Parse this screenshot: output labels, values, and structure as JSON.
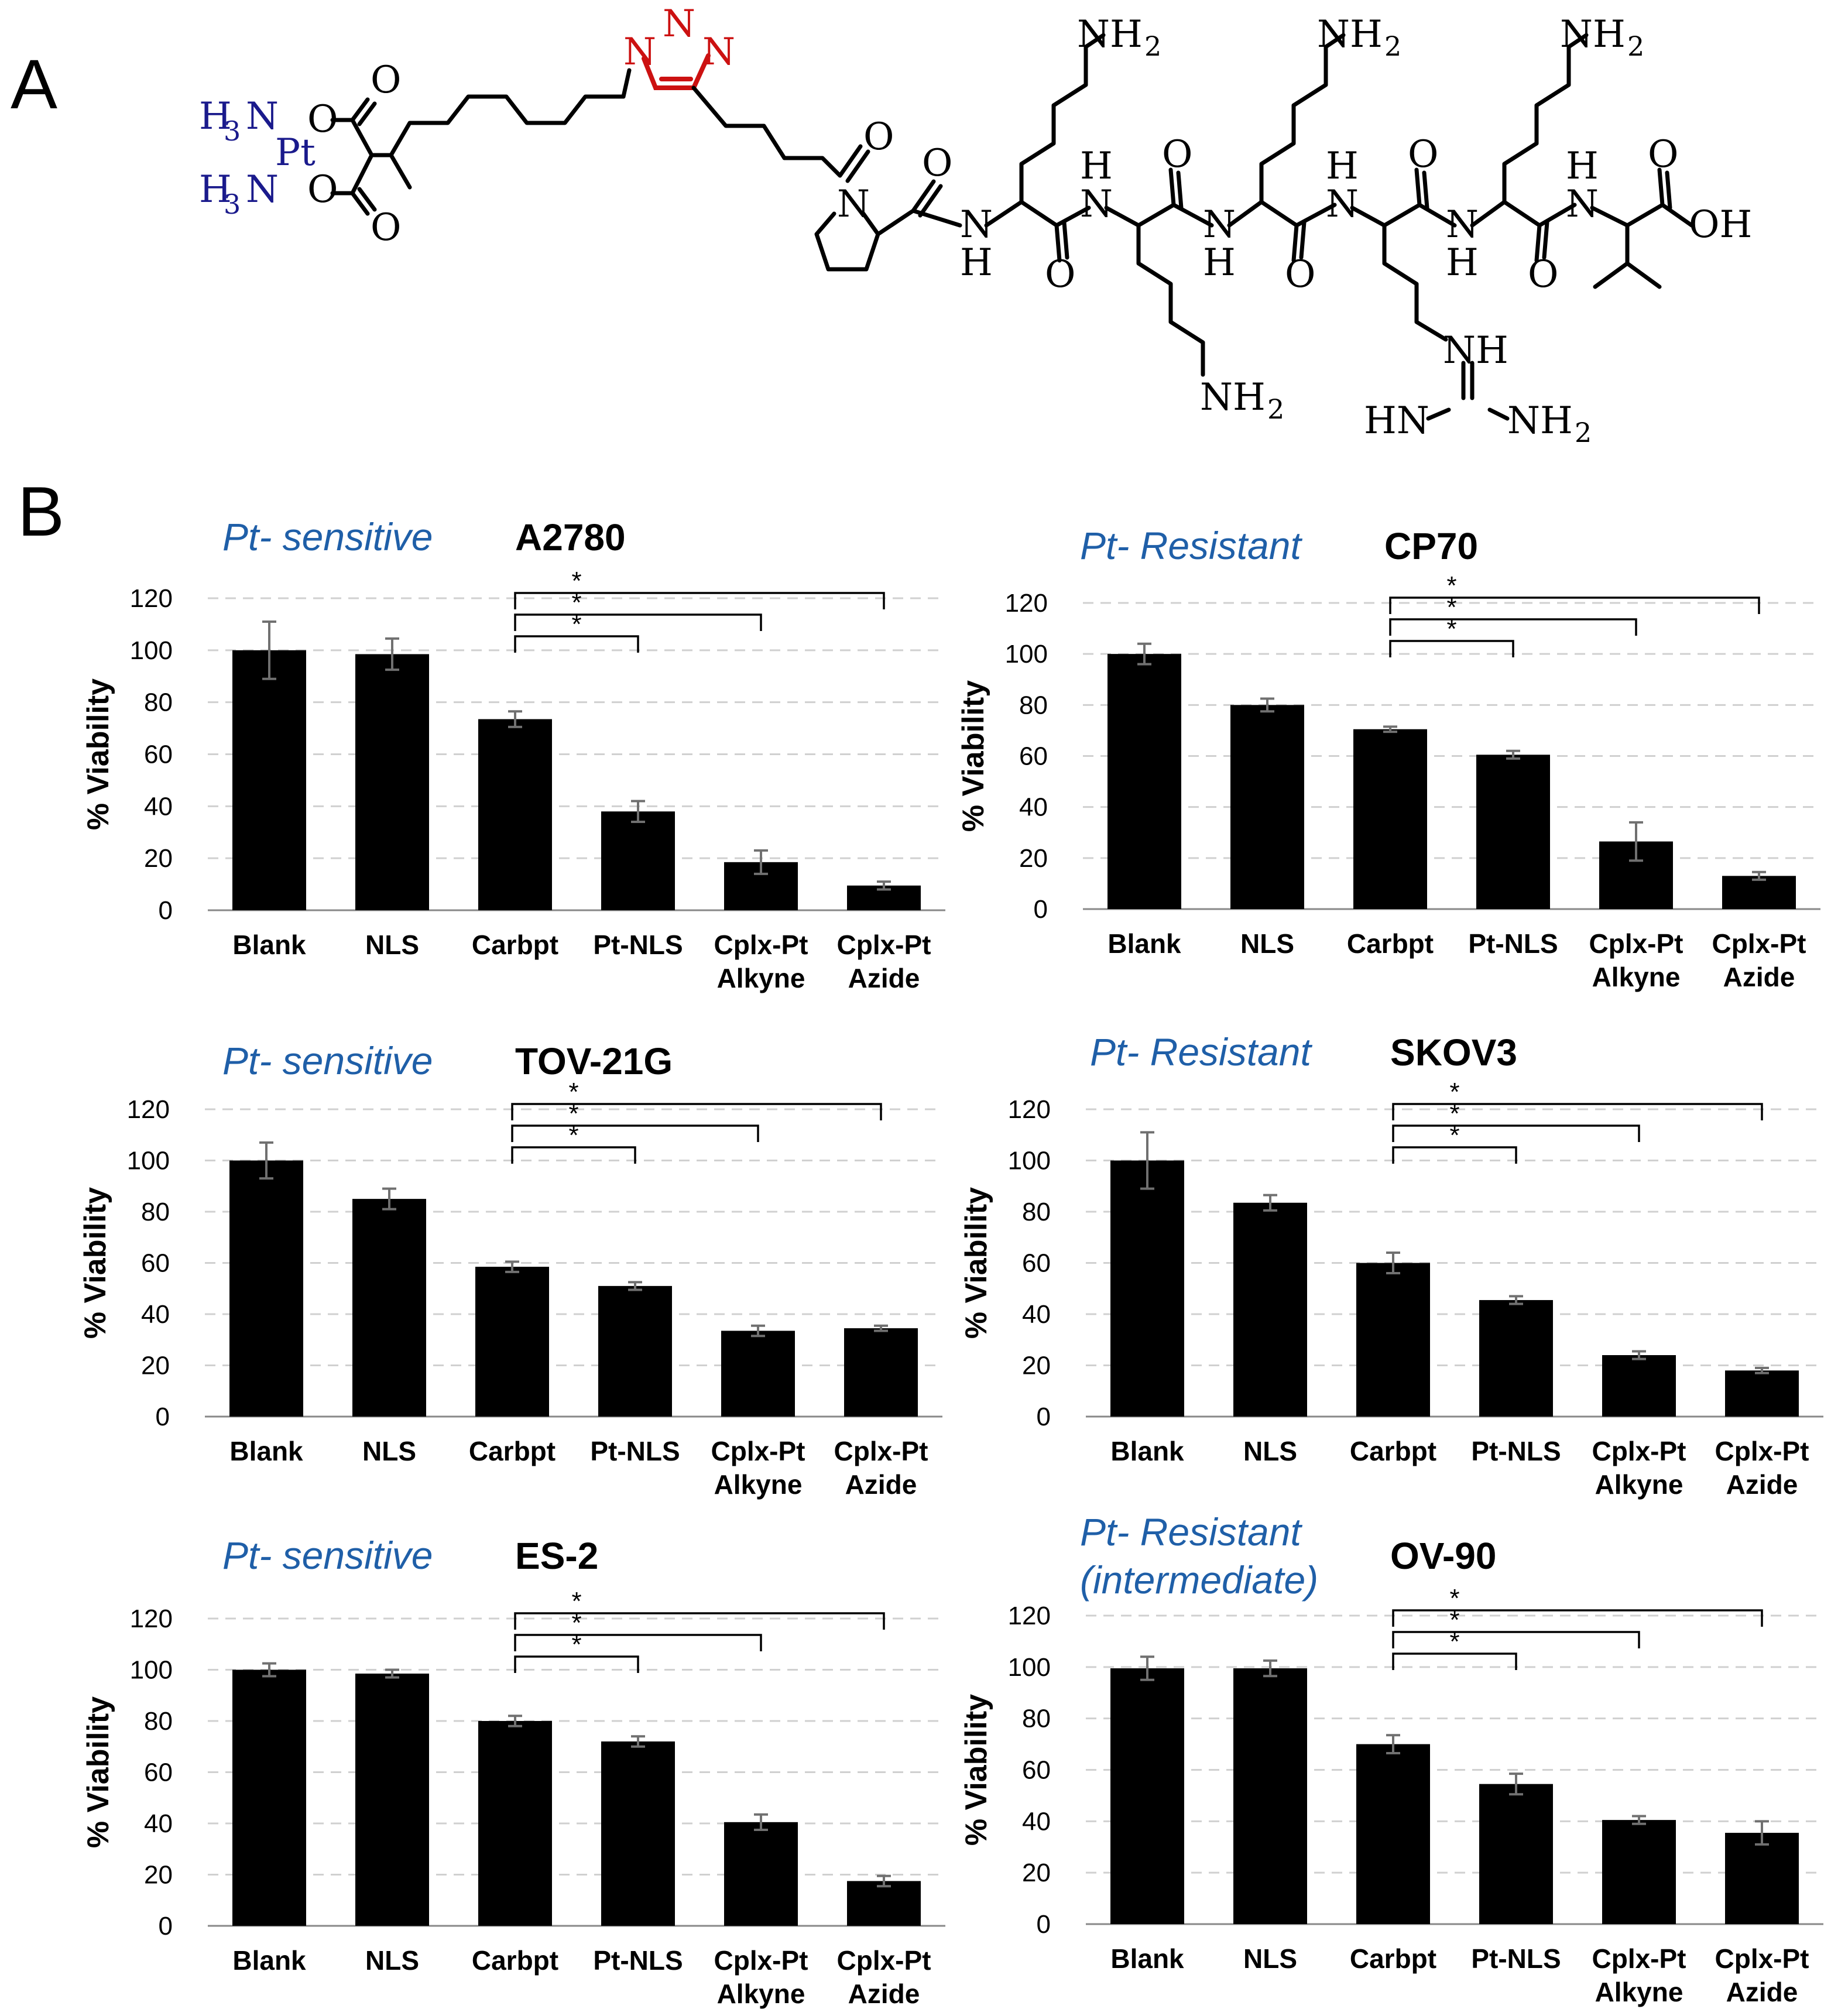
{
  "panel_labels": {
    "a": "A",
    "b": "B"
  },
  "structure": {
    "pt_atoms": {
      "h3n_top_H": "H",
      "h3n_top_3": "3",
      "h3n_top_N": "N",
      "h3n_bot_H": "H",
      "h3n_bot_3": "3",
      "h3n_bot_N": "N",
      "pt": "Pt"
    },
    "carboxylate_O": "O",
    "triazole_N": "N",
    "amide_N": "N",
    "amide_H": "H",
    "proline_N": "N",
    "amine_NH": "NH",
    "amine_sub": "2",
    "guan_NH": "NH",
    "guan_HN": "HN",
    "guan_NH2": "NH",
    "acid_OH": "OH",
    "colors": {
      "pt_ligand": "#1a1a8c",
      "triazole": "#cc1111"
    }
  },
  "chart_data": [
    {
      "type": "bar",
      "sensitivity": "Pt- sensitive",
      "title": "A2780",
      "ylabel": "% Viability",
      "ylim": [
        0,
        120
      ],
      "yticks": [
        0,
        20,
        40,
        60,
        80,
        100,
        120
      ],
      "categories": [
        [
          "Blank"
        ],
        [
          "NLS"
        ],
        [
          "Carbpt"
        ],
        [
          "Pt-NLS"
        ],
        [
          "Cplx-Pt",
          "Alkyne"
        ],
        [
          "Cplx-Pt",
          "Azide"
        ]
      ],
      "values": [
        100,
        98.5,
        73.5,
        38,
        18.5,
        9.5
      ],
      "errors": [
        11,
        6,
        3,
        4,
        4.5,
        1.5
      ],
      "significance": [
        {
          "from": 2,
          "to": 3,
          "label": "*"
        },
        {
          "from": 2,
          "to": 4,
          "label": "*"
        },
        {
          "from": 2,
          "to": 5,
          "label": "*"
        }
      ]
    },
    {
      "type": "bar",
      "sensitivity": "Pt- Resistant",
      "title": "CP70",
      "ylabel": "% Viability",
      "ylim": [
        0,
        120
      ],
      "yticks": [
        0,
        20,
        40,
        60,
        80,
        100,
        120
      ],
      "categories": [
        [
          "Blank"
        ],
        [
          "NLS"
        ],
        [
          "Carbpt"
        ],
        [
          "Pt-NLS"
        ],
        [
          "Cplx-Pt",
          "Alkyne"
        ],
        [
          "Cplx-Pt",
          "Azide"
        ]
      ],
      "values": [
        100,
        80,
        70.5,
        60.5,
        26.5,
        13
      ],
      "errors": [
        4,
        2.5,
        1,
        1.5,
        7.5,
        1.5
      ],
      "significance": [
        {
          "from": 2,
          "to": 3,
          "label": "*"
        },
        {
          "from": 2,
          "to": 4,
          "label": "*"
        },
        {
          "from": 2,
          "to": 5,
          "label": "*"
        }
      ]
    },
    {
      "type": "bar",
      "sensitivity": "Pt- sensitive",
      "title": "TOV-21G",
      "ylabel": "% Viability",
      "ylim": [
        0,
        120
      ],
      "yticks": [
        0,
        20,
        40,
        60,
        80,
        100,
        120
      ],
      "categories": [
        [
          "Blank"
        ],
        [
          "NLS"
        ],
        [
          "Carbpt"
        ],
        [
          "Pt-NLS"
        ],
        [
          "Cplx-Pt",
          "Alkyne"
        ],
        [
          "Cplx-Pt",
          "Azide"
        ]
      ],
      "values": [
        100,
        85,
        58.5,
        51,
        33.5,
        34.5
      ],
      "errors": [
        7,
        4,
        2,
        1.5,
        2,
        1
      ],
      "significance": [
        {
          "from": 2,
          "to": 3,
          "label": "*"
        },
        {
          "from": 2,
          "to": 4,
          "label": "*"
        },
        {
          "from": 2,
          "to": 5,
          "label": "*"
        }
      ]
    },
    {
      "type": "bar",
      "sensitivity": "Pt- Resistant",
      "title": "SKOV3",
      "ylabel": "% Viability",
      "ylim": [
        0,
        120
      ],
      "yticks": [
        0,
        20,
        40,
        60,
        80,
        100,
        120
      ],
      "categories": [
        [
          "Blank"
        ],
        [
          "NLS"
        ],
        [
          "Carbpt"
        ],
        [
          "Pt-NLS"
        ],
        [
          "Cplx-Pt",
          "Alkyne"
        ],
        [
          "Cplx-Pt",
          "Azide"
        ]
      ],
      "values": [
        100,
        83.5,
        60,
        45.5,
        24,
        18
      ],
      "errors": [
        11,
        3,
        4,
        1.5,
        1.5,
        1
      ],
      "significance": [
        {
          "from": 2,
          "to": 3,
          "label": "*"
        },
        {
          "from": 2,
          "to": 4,
          "label": "*"
        },
        {
          "from": 2,
          "to": 5,
          "label": "*"
        }
      ]
    },
    {
      "type": "bar",
      "sensitivity": "Pt- sensitive",
      "title": "ES-2",
      "ylabel": "% Viability",
      "ylim": [
        0,
        120
      ],
      "yticks": [
        0,
        20,
        40,
        60,
        80,
        100,
        120
      ],
      "categories": [
        [
          "Blank"
        ],
        [
          "NLS"
        ],
        [
          "Carbpt"
        ],
        [
          "Pt-NLS"
        ],
        [
          "Cplx-Pt",
          "Alkyne"
        ],
        [
          "Cplx-Pt",
          "Azide"
        ]
      ],
      "values": [
        100,
        98.5,
        80,
        72,
        40.5,
        17.5
      ],
      "errors": [
        2.5,
        1.5,
        2,
        2,
        3,
        2
      ],
      "significance": [
        {
          "from": 2,
          "to": 3,
          "label": "*"
        },
        {
          "from": 2,
          "to": 4,
          "label": "*"
        },
        {
          "from": 2,
          "to": 5,
          "label": "*"
        }
      ]
    },
    {
      "type": "bar",
      "sensitivity": "Pt- Resistant",
      "sensitivity_line2": "(intermediate)",
      "title": "OV-90",
      "ylabel": "% Viability",
      "ylim": [
        0,
        120
      ],
      "yticks": [
        0,
        20,
        40,
        60,
        80,
        100,
        120
      ],
      "categories": [
        [
          "Blank"
        ],
        [
          "NLS"
        ],
        [
          "Carbpt"
        ],
        [
          "Pt-NLS"
        ],
        [
          "Cplx-Pt",
          "Alkyne"
        ],
        [
          "Cplx-Pt",
          "Azide"
        ]
      ],
      "values": [
        99.5,
        99.5,
        70,
        54.5,
        40.5,
        35.5
      ],
      "errors": [
        4.5,
        3,
        3.5,
        4,
        1.5,
        4.5
      ],
      "significance": [
        {
          "from": 2,
          "to": 3,
          "label": "*"
        },
        {
          "from": 2,
          "to": 4,
          "label": "*"
        },
        {
          "from": 2,
          "to": 5,
          "label": "*"
        }
      ]
    }
  ]
}
